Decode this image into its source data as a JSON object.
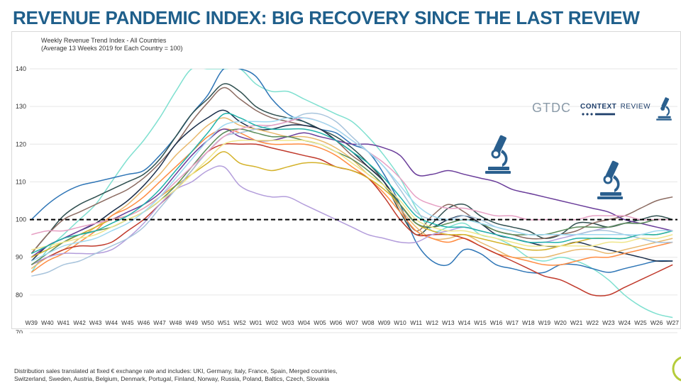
{
  "title": "REVENUE PANDEMIC INDEX: BIG RECOVERY SINCE THE LAST REVIEW",
  "footnote": {
    "line1": "Distribution sales translated at fixed € exchange rate and includes: UKI, Germany, Italy, France, Spain, Merged countries,",
    "line2": "Switzerland, Sweden, Austria, Belgium, Denmark, Portugal, Finland, Norway, Russia, Poland, Baltics, Czech, Slovakia"
  },
  "logo": {
    "gtdc": "GTDC",
    "context": "CONTEXT",
    "review": "REVIEW"
  },
  "icons": [
    "microscope-icon",
    "microscope-icon",
    "microscope-icon-small"
  ],
  "chart_data": {
    "type": "line",
    "title": "Weekly Revenue Trend Index - All Countries",
    "subtitle": "(Average 13 Weeks 2019 for Each Country = 100)",
    "ylim": [
      70,
      140
    ],
    "yticks": [
      70,
      80,
      90,
      100,
      110,
      120,
      130,
      140
    ],
    "reference_line": 100,
    "grid": "horizontal",
    "categories": [
      "W39",
      "W40",
      "W41",
      "W42",
      "W43",
      "W44",
      "W45",
      "W46",
      "W47",
      "W48",
      "W49",
      "W50",
      "W51",
      "W52",
      "W01",
      "W02",
      "W03",
      "W04",
      "W05",
      "W06",
      "W07",
      "W08",
      "W09",
      "W10",
      "W11",
      "W12",
      "W13",
      "W14",
      "W15",
      "W16",
      "W17",
      "W18",
      "W19",
      "W20",
      "W21",
      "W22",
      "W23",
      "W24",
      "W25",
      "W26",
      "W27"
    ],
    "series": [
      {
        "color": "#7fe0d0",
        "values": [
          86,
          92,
          96,
          100,
          104,
          110,
          116,
          121,
          127,
          134,
          140,
          140,
          140,
          140,
          136,
          134,
          134,
          132,
          130,
          128,
          126,
          122,
          117,
          111,
          103,
          97,
          98,
          99,
          96,
          95,
          93,
          90,
          89,
          90,
          89,
          87,
          84,
          80,
          77,
          75,
          74
        ]
      },
      {
        "color": "#2e75b6",
        "values": [
          100,
          104,
          107,
          109,
          110,
          111,
          112,
          113,
          117,
          122,
          128,
          133,
          140,
          140,
          138,
          132,
          128,
          126,
          124,
          123,
          120,
          118,
          112,
          104,
          94,
          89,
          88,
          92,
          91,
          88,
          87,
          86,
          86,
          88,
          88,
          87,
          86,
          87,
          88,
          89,
          89
        ]
      },
      {
        "color": "#2f4f4f",
        "values": [
          91,
          96,
          101,
          104,
          106,
          108,
          110,
          112,
          116,
          122,
          128,
          132,
          136,
          134,
          130,
          128,
          127,
          126,
          124,
          122,
          119,
          115,
          110,
          102,
          96,
          99,
          103,
          104,
          101,
          99,
          98,
          97,
          95,
          96,
          99,
          99,
          98,
          99,
          100,
          101,
          100
        ]
      },
      {
        "color": "#8b6b61",
        "values": [
          91,
          96,
          100,
          102,
          104,
          106,
          108,
          111,
          115,
          120,
          126,
          131,
          135,
          132,
          129,
          127,
          126,
          125,
          124,
          121,
          117,
          114,
          110,
          103,
          97,
          101,
          104,
          102,
          99,
          97,
          96,
          95,
          95,
          96,
          97,
          99,
          100,
          101,
          103,
          105,
          106
        ]
      },
      {
        "color": "#1a2e4a",
        "values": [
          89,
          93,
          95,
          97,
          99,
          102,
          105,
          109,
          114,
          120,
          124,
          127,
          129,
          126,
          124,
          124,
          125,
          125,
          124,
          121,
          118,
          114,
          110,
          104,
          99,
          98,
          100,
          101,
          99,
          96,
          95,
          94,
          93,
          93,
          94,
          93,
          92,
          91,
          90,
          89,
          89
        ]
      },
      {
        "color": "#e8b86d",
        "values": [
          87,
          90,
          92,
          95,
          98,
          101,
          104,
          108,
          112,
          117,
          121,
          125,
          127,
          125,
          124,
          123,
          122,
          122,
          121,
          119,
          116,
          112,
          109,
          103,
          98,
          95,
          95,
          96,
          94,
          92,
          90,
          90,
          90,
          91,
          92,
          92,
          91,
          92,
          93,
          94,
          95
        ]
      },
      {
        "color": "#ff8c42",
        "values": [
          86,
          89,
          91,
          94,
          97,
          101,
          103,
          106,
          110,
          114,
          118,
          122,
          124,
          123,
          121,
          120,
          120,
          120,
          119,
          117,
          114,
          111,
          107,
          102,
          97,
          95,
          94,
          95,
          93,
          91,
          90,
          89,
          88,
          88,
          89,
          90,
          90,
          91,
          92,
          93,
          94
        ]
      },
      {
        "color": "#6a3d9a",
        "values": [
          90,
          93,
          95,
          97,
          99,
          100,
          102,
          104,
          107,
          112,
          117,
          121,
          124,
          122,
          121,
          121,
          122,
          123,
          122,
          121,
          120,
          120,
          119,
          117,
          112,
          112,
          113,
          112,
          111,
          110,
          108,
          107,
          106,
          105,
          104,
          103,
          102,
          100,
          99,
          98,
          97
        ]
      },
      {
        "color": "#c0392b",
        "values": [
          88,
          90,
          92,
          93,
          93,
          94,
          97,
          100,
          104,
          108,
          113,
          118,
          120,
          120,
          120,
          119,
          118,
          117,
          116,
          114,
          113,
          111,
          106,
          100,
          96,
          96,
          96,
          95,
          93,
          91,
          89,
          87,
          85,
          84,
          82,
          80,
          80,
          82,
          84,
          86,
          88
        ]
      },
      {
        "color": "#d4b22a",
        "values": [
          90,
          92,
          94,
          96,
          98,
          100,
          101,
          103,
          106,
          109,
          112,
          115,
          118,
          115,
          114,
          113,
          114,
          115,
          115,
          114,
          113,
          111,
          108,
          104,
          99,
          97,
          96,
          96,
          95,
          94,
          93,
          92,
          92,
          93,
          94,
          95,
          95,
          95,
          96,
          96,
          97
        ]
      },
      {
        "color": "#b39ddb",
        "values": [
          88,
          90,
          91,
          91,
          91,
          92,
          95,
          99,
          104,
          108,
          110,
          113,
          114,
          109,
          107,
          106,
          106,
          104,
          102,
          100,
          98,
          96,
          95,
          94,
          94,
          96,
          97,
          98,
          97,
          96,
          95,
          94,
          94,
          95,
          96,
          97,
          98,
          99,
          99,
          100,
          100
        ]
      },
      {
        "color": "#a8c4dc",
        "values": [
          85,
          86,
          88,
          89,
          91,
          93,
          95,
          98,
          103,
          108,
          113,
          118,
          122,
          123,
          124,
          125,
          126,
          128,
          128,
          126,
          122,
          118,
          114,
          108,
          102,
          100,
          100,
          101,
          100,
          98,
          97,
          96,
          96,
          96,
          96,
          97,
          97,
          96,
          95,
          94,
          94
        ]
      },
      {
        "color": "#5b8c5a",
        "values": [
          88,
          91,
          94,
          96,
          97,
          98,
          100,
          102,
          105,
          109,
          114,
          119,
          123,
          124,
          123,
          122,
          122,
          121,
          120,
          118,
          116,
          113,
          109,
          104,
          99,
          98,
          99,
          100,
          99,
          97,
          96,
          96,
          96,
          97,
          98,
          98,
          98,
          99,
          99,
          100,
          100
        ]
      },
      {
        "color": "#e6a0c4",
        "values": [
          96,
          97,
          97,
          98,
          99,
          100,
          101,
          103,
          106,
          110,
          114,
          118,
          122,
          124,
          125,
          125,
          126,
          127,
          126,
          124,
          121,
          118,
          115,
          111,
          106,
          104,
          103,
          103,
          102,
          101,
          101,
          100,
          100,
          100,
          100,
          101,
          101,
          101,
          100,
          100,
          100
        ]
      },
      {
        "color": "#f0e68c",
        "values": [
          92,
          93,
          94,
          95,
          96,
          98,
          100,
          102,
          105,
          108,
          112,
          116,
          120,
          121,
          121,
          121,
          121,
          121,
          120,
          118,
          115,
          112,
          109,
          105,
          100,
          98,
          97,
          97,
          96,
          95,
          94,
          93,
          93,
          93,
          93,
          93,
          94,
          94,
          95,
          95,
          96
        ]
      },
      {
        "color": "#20b2aa",
        "values": [
          91,
          93,
          95,
          96,
          97,
          99,
          101,
          104,
          108,
          113,
          118,
          123,
          128,
          127,
          125,
          124,
          124,
          124,
          123,
          121,
          118,
          115,
          111,
          106,
          101,
          99,
          98,
          98,
          97,
          96,
          95,
          94,
          94,
          94,
          95,
          95,
          95,
          95,
          96,
          96,
          97
        ]
      },
      {
        "color": "#9fd8f0",
        "values": [
          89,
          91,
          93,
          94,
          95,
          97,
          99,
          102,
          106,
          111,
          116,
          121,
          125,
          126,
          126,
          126,
          127,
          127,
          126,
          124,
          121,
          118,
          114,
          109,
          104,
          101,
          100,
          100,
          99,
          98,
          97,
          96,
          96,
          96,
          96,
          96,
          96,
          96,
          96,
          97,
          97
        ]
      }
    ]
  }
}
